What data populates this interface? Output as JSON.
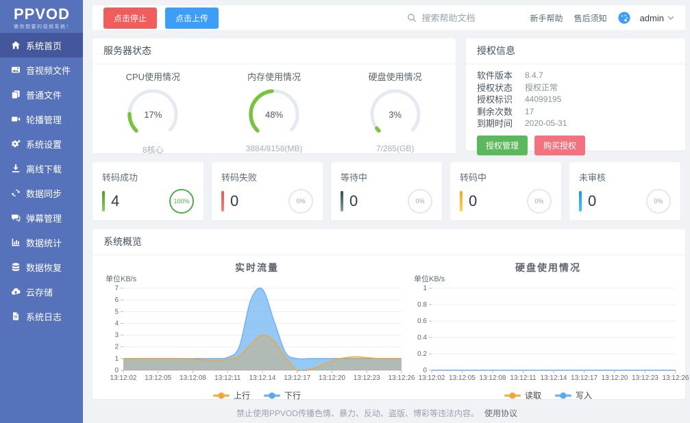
{
  "brand": {
    "logo": "PPVOD",
    "tagline": "做你想要的视频系统！"
  },
  "sidebar": {
    "items": [
      {
        "label": "系统首页",
        "active": true
      },
      {
        "label": "音视频文件",
        "active": false
      },
      {
        "label": "普通文件",
        "active": false
      },
      {
        "label": "轮播管理",
        "active": false
      },
      {
        "label": "系统设置",
        "active": false
      },
      {
        "label": "离线下载",
        "active": false
      },
      {
        "label": "数据同步",
        "active": false
      },
      {
        "label": "弹幕管理",
        "active": false
      },
      {
        "label": "数据统计",
        "active": false
      },
      {
        "label": "数据恢复",
        "active": false
      },
      {
        "label": "云存储",
        "active": false
      },
      {
        "label": "系统日志",
        "active": false
      }
    ]
  },
  "topbar": {
    "stop_button": "点击停止",
    "stop_color": "#ef5d5d",
    "upload_button": "点击上传",
    "upload_color": "#3d9ef7",
    "search_placeholder": "搜索帮助文档",
    "help_link": "新手帮助",
    "aftersale_link": "售后须知",
    "user": "admin"
  },
  "server_status": {
    "title": "服务器状态",
    "gauge_color": "#76c33d",
    "gauge_track": "#e4e9f2",
    "gauges": [
      {
        "title": "CPU使用情况",
        "percent": 17,
        "percent_text": "17%",
        "sub": "8核心"
      },
      {
        "title": "内存使用情况",
        "percent": 48,
        "percent_text": "48%",
        "sub": "3884/8158(MB)"
      },
      {
        "title": "硬盘使用情况",
        "percent": 3,
        "percent_text": "3%",
        "sub": "7/285(GB)"
      }
    ]
  },
  "license": {
    "title": "授权信息",
    "rows": [
      {
        "label": "软件版本",
        "value": "8.4.7"
      },
      {
        "label": "授权状态",
        "value": "授权正常"
      },
      {
        "label": "授权标识",
        "value": "44099195"
      },
      {
        "label": "剩余次数",
        "value": "17"
      },
      {
        "label": "到期时间",
        "value": "2020-05-31"
      }
    ],
    "buttons": [
      {
        "label": "授权管理",
        "color": "#5cb85c"
      },
      {
        "label": "购买授权",
        "color": "#f2737f"
      }
    ]
  },
  "stats": {
    "cards": [
      {
        "label": "转码成功",
        "value": "4",
        "percent": "100%",
        "bar_from": "#4c9a2a",
        "bar_to": "#8fd14f",
        "ring": "#4cae4c",
        "ring_text": "#4cae4c",
        "ring_strong": true
      },
      {
        "label": "转码失败",
        "value": "0",
        "percent": "0%",
        "bar_from": "#ef5350",
        "bar_to": "#f77f7f",
        "ring": "#e4e7f3",
        "ring_text": "#9aa1b5",
        "ring_strong": false
      },
      {
        "label": "等待中",
        "value": "0",
        "percent": "0%",
        "bar_from": "#36474f",
        "bar_to": "#79a8a2",
        "ring": "#e4e7f3",
        "ring_text": "#9aa1b5",
        "ring_strong": false
      },
      {
        "label": "转码中",
        "value": "0",
        "percent": "0%",
        "bar_from": "#f5a623",
        "bar_to": "#ffd24d",
        "ring": "#e4e7f3",
        "ring_text": "#9aa1b5",
        "ring_strong": false
      },
      {
        "label": "未审核",
        "value": "0",
        "percent": "0%",
        "bar_from": "#1e8fff",
        "bar_to": "#3ec6ff",
        "ring": "#e4e7f3",
        "ring_text": "#9aa1b5",
        "ring_strong": false
      }
    ]
  },
  "overview": {
    "title": "系统概览"
  },
  "chart_data": [
    {
      "type": "area",
      "title": "实时流量",
      "ylabel": "单位KB/s",
      "ylim": [
        0,
        7
      ],
      "ytick_step": 1,
      "grid": true,
      "legend_position": "bottom",
      "x_labels": [
        "13:12:02",
        "13:12:05",
        "13:12:08",
        "13:12:11",
        "13:12:14",
        "13:12:17",
        "13:12:20",
        "13:12:23",
        "13:12:26"
      ],
      "series": [
        {
          "name": "下行",
          "color": "#6db3f2",
          "fill": "rgba(109,179,242,0.72)",
          "values": [
            1,
            1,
            1,
            1,
            1,
            1,
            1,
            1,
            1,
            1.1,
            2,
            6,
            6.9,
            4.2,
            1.5,
            1,
            1,
            1,
            1,
            1,
            1,
            1,
            1,
            1,
            1
          ]
        },
        {
          "name": "上行",
          "color": "#f0a63a",
          "fill": "rgba(230,162,60,0.35)",
          "values": [
            1,
            1,
            1,
            1,
            1,
            1,
            0.95,
            0.87,
            0.83,
            0.92,
            1.2,
            2.2,
            3,
            2.5,
            1.1,
            0,
            0.05,
            0.4,
            0.8,
            1.05,
            1.15,
            1.08,
            1,
            1,
            1
          ]
        }
      ],
      "legend": [
        {
          "name": "上行",
          "color": "#f0a63a"
        },
        {
          "name": "下行",
          "color": "#5aa8f0"
        }
      ]
    },
    {
      "type": "line",
      "title": "硬盘使用情况",
      "ylabel": "单位KB/s",
      "ylim": [
        0,
        1
      ],
      "ytick_step": 0.2,
      "grid": true,
      "legend_position": "bottom",
      "x_labels": [
        "13:12:02",
        "13:12:05",
        "13:12:08",
        "13:12:11",
        "13:12:14",
        "13:12:17",
        "13:12:20",
        "13:12:23",
        "13:12:26"
      ],
      "series": [
        {
          "name": "读取",
          "color": "#f0a63a",
          "fill": null,
          "values": [
            0,
            0,
            0,
            0,
            0,
            0,
            0,
            0,
            0,
            0,
            0,
            0,
            0,
            0,
            0,
            0,
            0,
            0,
            0,
            0,
            0,
            0,
            0,
            0,
            0
          ]
        },
        {
          "name": "写入",
          "color": "#7ab6f5",
          "fill": null,
          "values": [
            0,
            0,
            0,
            0,
            0,
            0,
            0,
            0,
            0,
            0,
            0,
            0,
            0,
            0,
            0,
            0,
            0,
            0,
            0,
            0,
            0,
            0,
            0,
            0,
            0
          ]
        }
      ],
      "legend": [
        {
          "name": "读取",
          "color": "#f0a63a"
        },
        {
          "name": "写入",
          "color": "#5aa8f0"
        }
      ]
    }
  ],
  "footer": {
    "text": "禁止使用PPVOD传播色情、暴力、反动、盗版、博彩等违法内容。",
    "link": "使用协议"
  }
}
